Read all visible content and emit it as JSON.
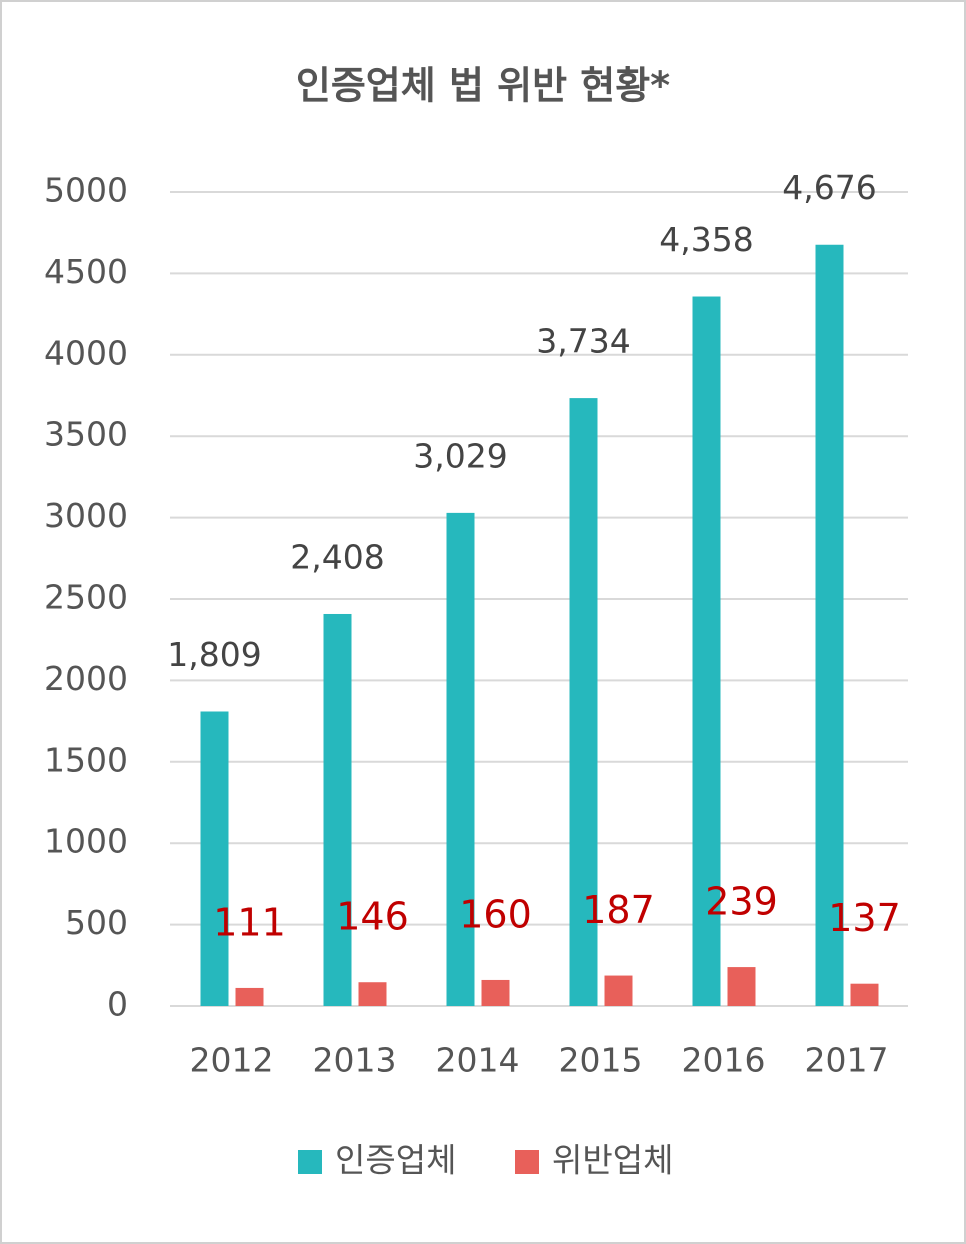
{
  "chart_data": {
    "type": "bar",
    "title": "인증업체 법 위반 현황*",
    "categories": [
      "2012",
      "2013",
      "2014",
      "2015",
      "2016",
      "2017"
    ],
    "series": [
      {
        "name": "인증업체",
        "color": "#26b8bd",
        "values": [
          1809,
          2408,
          3029,
          3734,
          4358,
          4676
        ],
        "value_labels": [
          "1,809",
          "2,408",
          "3,029",
          "3,734",
          "4,358",
          "4,676"
        ]
      },
      {
        "name": "위반업체",
        "color": "#e8605a",
        "label_color": "#c00000",
        "values": [
          111,
          146,
          160,
          187,
          239,
          137
        ]
      }
    ],
    "ylim": [
      0,
      5000
    ],
    "yticks": [
      0,
      500,
      1000,
      1500,
      2000,
      2500,
      3000,
      3500,
      4000,
      4500,
      5000
    ],
    "grid": true,
    "legend": "bottom"
  }
}
